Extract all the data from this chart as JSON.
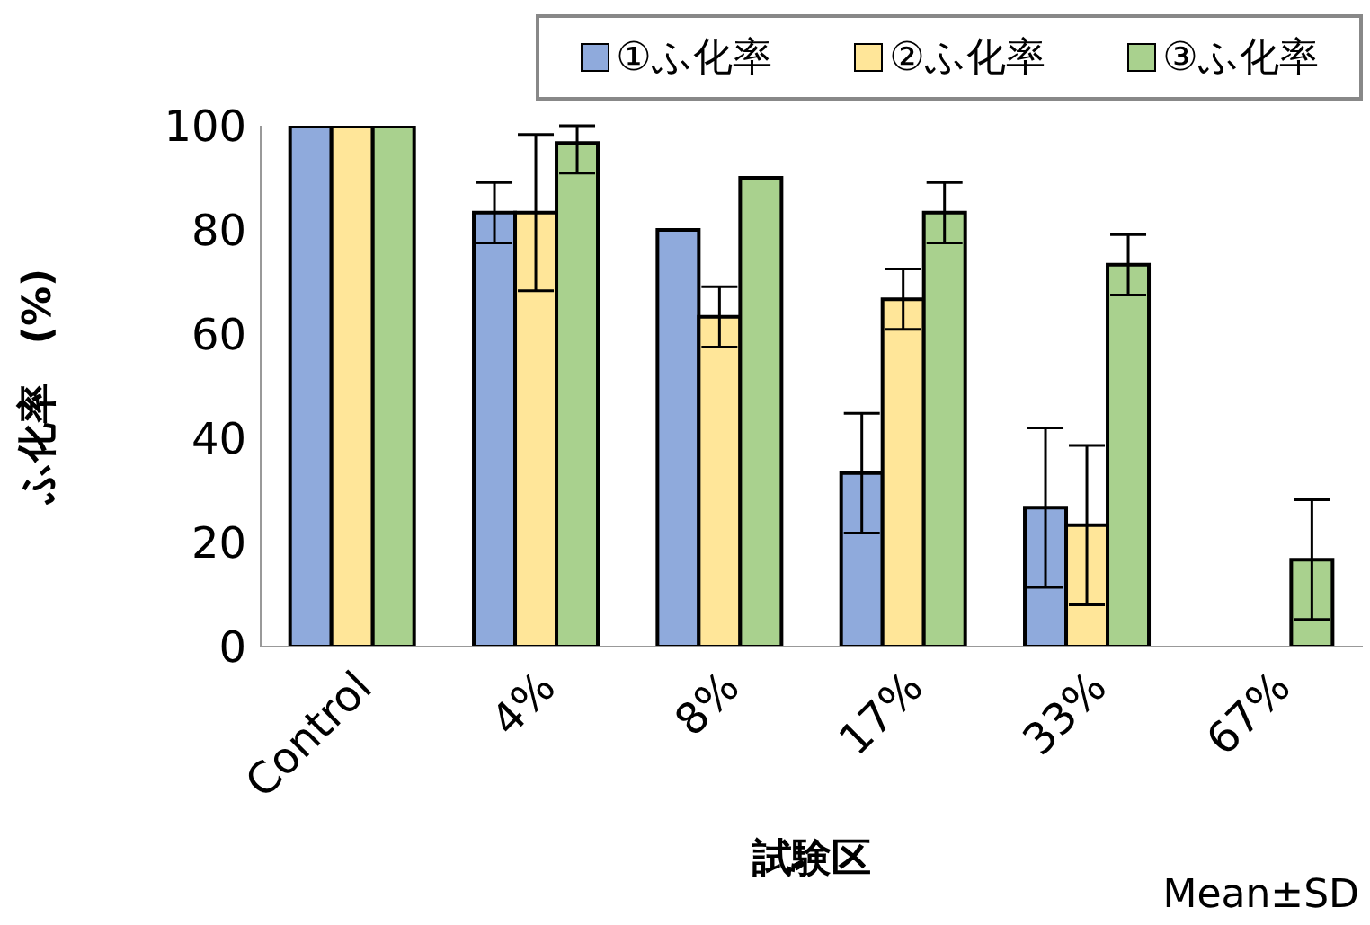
{
  "chart_data": {
    "type": "bar",
    "xlabel": "試験区",
    "ylabel": "ふ化率　(%)",
    "categories": [
      "Control",
      "4%",
      "8%",
      "17%",
      "33%",
      "67%"
    ],
    "series": [
      {
        "name": "①ふ化率",
        "color": "#8faadc",
        "values": [
          100,
          83.3,
          80,
          33.3,
          26.7,
          0
        ],
        "errors": [
          null,
          5.8,
          null,
          11.5,
          15.3,
          null
        ]
      },
      {
        "name": "②ふ化率",
        "color": "#ffe699",
        "values": [
          100,
          83.3,
          63.3,
          66.7,
          23.3,
          0
        ],
        "errors": [
          null,
          15,
          5.8,
          5.8,
          15.3,
          null
        ]
      },
      {
        "name": "③ふ化率",
        "color": "#a9d18e",
        "values": [
          100,
          96.7,
          90,
          83.3,
          73.3,
          16.7
        ],
        "errors": [
          null,
          [
            90.9,
            100
          ],
          null,
          5.8,
          5.8,
          11.5
        ]
      }
    ],
    "ylim": [
      0,
      100
    ],
    "yticks": [
      0,
      20,
      40,
      60,
      80,
      100
    ],
    "grid": false,
    "legend": "top",
    "annotations": [
      "Mean±SD"
    ]
  }
}
